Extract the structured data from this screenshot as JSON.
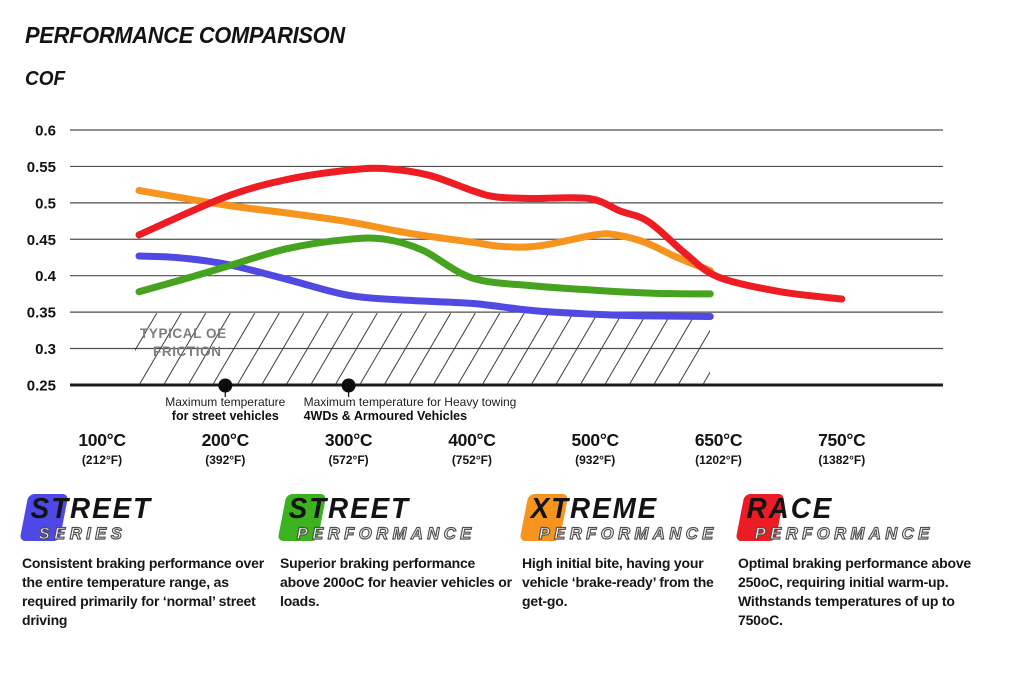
{
  "chart_data": {
    "type": "line",
    "title": "PERFORMANCE COMPARISON",
    "ylabel": "COF",
    "xlabel": "",
    "ylim": [
      0.25,
      0.6
    ],
    "grid": true,
    "y_ticks": [
      0.6,
      0.55,
      0.5,
      0.45,
      0.4,
      0.35,
      0.3,
      0.25
    ],
    "x_ticks": [
      {
        "celsius": "100°C",
        "fahrenheit": "(212°F)"
      },
      {
        "celsius": "200°C",
        "fahrenheit": "(392°F)"
      },
      {
        "celsius": "300°C",
        "fahrenheit": "(572°F)"
      },
      {
        "celsius": "400°C",
        "fahrenheit": "(752°F)"
      },
      {
        "celsius": "500°C",
        "fahrenheit": "(932°F)"
      },
      {
        "celsius": "650°C",
        "fahrenheit": "(1202°F)"
      },
      {
        "celsius": "750°C",
        "fahrenheit": "(1382°F)"
      }
    ],
    "series": [
      {
        "name": "Street Series",
        "color": "#514AE2",
        "points": [
          [
            130,
            0.427
          ],
          [
            160,
            0.425
          ],
          [
            200,
            0.416
          ],
          [
            250,
            0.395
          ],
          [
            300,
            0.373
          ],
          [
            350,
            0.366
          ],
          [
            400,
            0.362
          ],
          [
            450,
            0.352
          ],
          [
            500,
            0.347
          ],
          [
            550,
            0.345
          ],
          [
            640,
            0.344
          ]
        ]
      },
      {
        "name": "Street Performance",
        "color": "#46A31F",
        "points": [
          [
            130,
            0.378
          ],
          [
            170,
            0.397
          ],
          [
            200,
            0.412
          ],
          [
            250,
            0.437
          ],
          [
            300,
            0.45
          ],
          [
            330,
            0.45
          ],
          [
            360,
            0.435
          ],
          [
            400,
            0.397
          ],
          [
            450,
            0.386
          ],
          [
            500,
            0.38
          ],
          [
            570,
            0.376
          ],
          [
            640,
            0.375
          ]
        ]
      },
      {
        "name": "Xtreme Performance",
        "color": "#F7941E",
        "points": [
          [
            130,
            0.517
          ],
          [
            200,
            0.497
          ],
          [
            250,
            0.486
          ],
          [
            300,
            0.474
          ],
          [
            350,
            0.458
          ],
          [
            400,
            0.446
          ],
          [
            425,
            0.44
          ],
          [
            455,
            0.441
          ],
          [
            500,
            0.456
          ],
          [
            525,
            0.456
          ],
          [
            560,
            0.446
          ],
          [
            600,
            0.425
          ],
          [
            640,
            0.407
          ]
        ]
      },
      {
        "name": "Race Performance",
        "color": "#EE1C23",
        "points": [
          [
            130,
            0.456
          ],
          [
            200,
            0.508
          ],
          [
            250,
            0.532
          ],
          [
            300,
            0.545
          ],
          [
            330,
            0.547
          ],
          [
            365,
            0.538
          ],
          [
            400,
            0.517
          ],
          [
            420,
            0.508
          ],
          [
            450,
            0.506
          ],
          [
            495,
            0.506
          ],
          [
            530,
            0.489
          ],
          [
            565,
            0.474
          ],
          [
            610,
            0.43
          ],
          [
            650,
            0.398
          ],
          [
            700,
            0.378
          ],
          [
            750,
            0.368
          ]
        ]
      }
    ],
    "oe_friction_band": {
      "label_line1": "TYPICAL OE",
      "label_line2": "FRICTION",
      "range": [
        0.25,
        0.35
      ]
    },
    "annotations": [
      {
        "line1": "Maximum temperature",
        "line2": "for street vehicles",
        "temp": 200
      },
      {
        "line1": "Maximum temperature for Heavy towing",
        "line2": "4WDs & Armoured Vehicles",
        "temp": 300
      }
    ]
  },
  "legend": [
    {
      "word1": "STREET",
      "word2": "SERIES",
      "color": "#4E49E6",
      "description": "Consistent braking performance over the entire temperature range, as required primarily for ‘normal’ street driving"
    },
    {
      "word1": "STREET",
      "word2": "PERFORMANCE",
      "color": "#3CB21F",
      "description": "Superior braking performance above 200oC for heavier vehicles or loads."
    },
    {
      "word1": "XTREME",
      "word2": "PERFORMANCE",
      "color": "#F7941E",
      "description": "High initial bite, having your vehicle ‘brake-ready’ from the get-go."
    },
    {
      "word1": "RACE",
      "word2": "PERFORMANCE",
      "color": "#EC1C24",
      "description": "Optimal braking performance above 250oC, requiring initial warm-up. Withstands temperatures of up to 750oC."
    }
  ]
}
